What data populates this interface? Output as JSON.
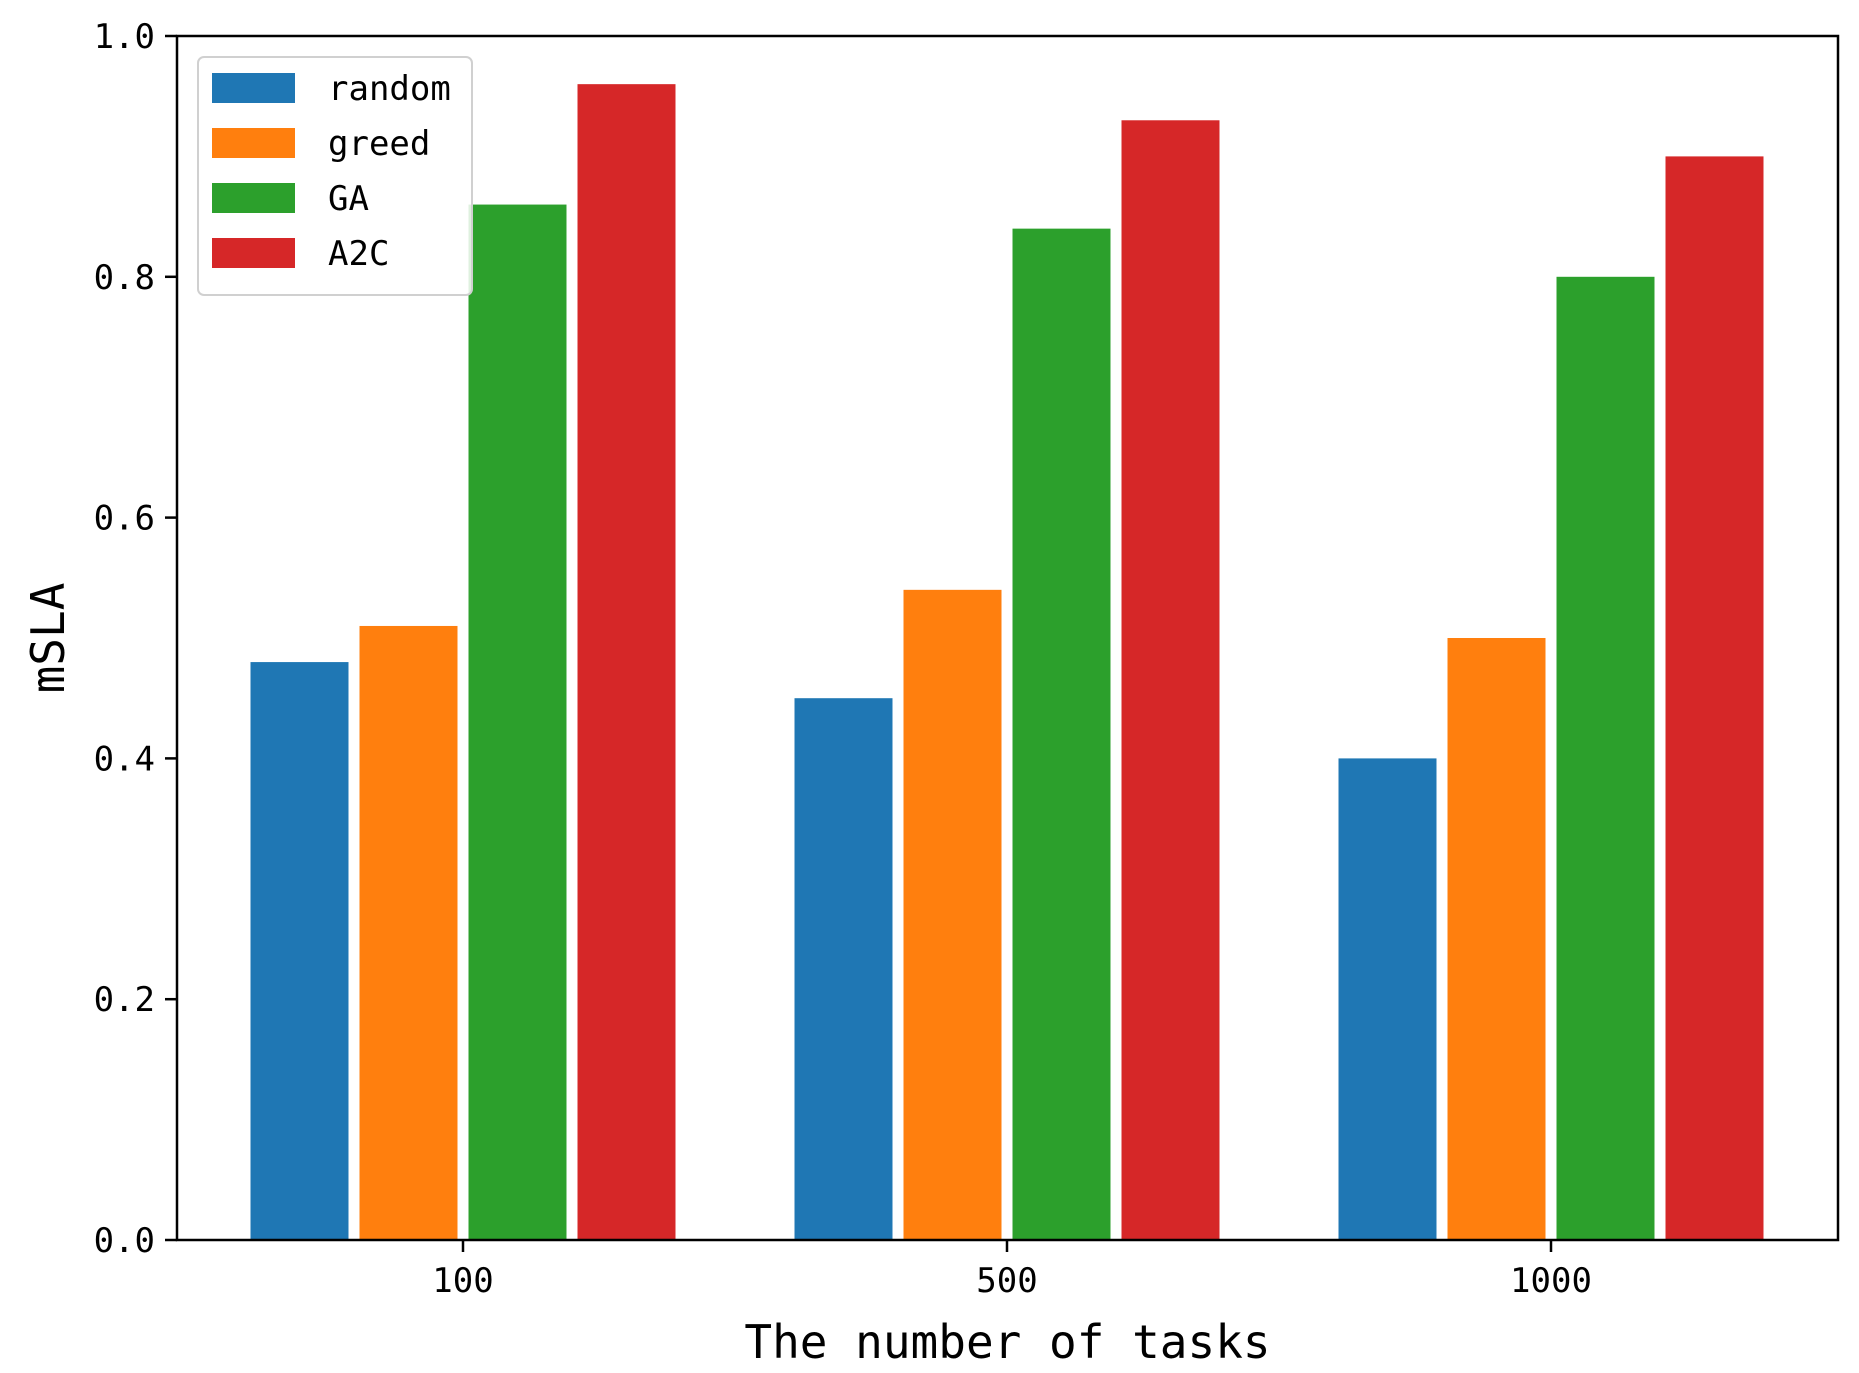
{
  "chart_data": {
    "type": "bar",
    "categories": [
      "100",
      "500",
      "1000"
    ],
    "series": [
      {
        "name": "random",
        "color": "#1f77b4",
        "values": [
          0.48,
          0.45,
          0.4
        ]
      },
      {
        "name": "greed",
        "color": "#ff7f0e",
        "values": [
          0.51,
          0.54,
          0.5
        ]
      },
      {
        "name": "GA",
        "color": "#2ca02c",
        "values": [
          0.86,
          0.84,
          0.8
        ]
      },
      {
        "name": "A2C",
        "color": "#d62728",
        "values": [
          0.96,
          0.93,
          0.9
        ]
      }
    ],
    "xlabel": "The number of tasks",
    "ylabel": "mSLA",
    "ylim": [
      0,
      1.0
    ],
    "yticks": [
      "0.0",
      "0.2",
      "0.4",
      "0.6",
      "0.8",
      "1.0"
    ],
    "grid": false,
    "legend_position": "top-left"
  }
}
